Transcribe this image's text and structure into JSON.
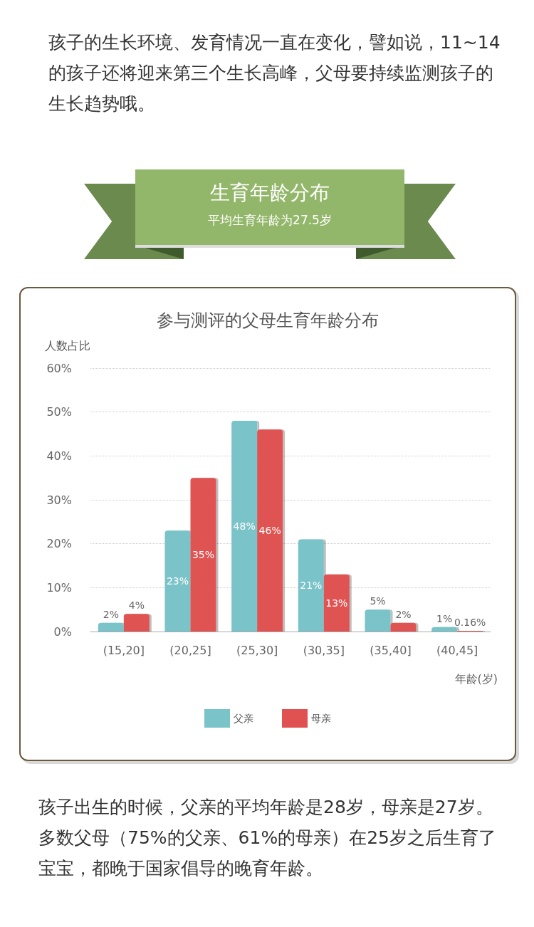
{
  "chart_data": {
    "type": "bar",
    "title": "参与测评的父母生育年龄分布",
    "ylabel": "人数占比",
    "xlabel": "年龄(岁)",
    "annotations": [
      "孩子的生长环境、发育情况一直在变化，譬如说，11~14的孩子还将迎来第三个生长高峰，父母要持续监测孩子的生长趋势哦。",
      "生育年龄分布",
      "平均生育年龄为27.5岁",
      "孩子出生的时候，父亲的平均年龄是28岁，母亲是27岁。多数父母（75%的父亲、61%的母亲）在25岁之后生育了宝宝，都晚于国家倡导的晚育年龄。"
    ],
    "categories": [
      "(15,20]",
      "(20,25]",
      "(25,30]",
      "(30,35]",
      "(35,40]",
      "(40,45]"
    ],
    "series": [
      {
        "name": "父亲",
        "color": "#7ac3c9",
        "values": [
          2,
          23,
          48,
          21,
          5,
          1
        ],
        "value_labels": [
          "2%",
          "23%",
          "48%",
          "21%",
          "5%",
          "1%"
        ]
      },
      {
        "name": "母亲",
        "color": "#e05252",
        "values": [
          4,
          35,
          46,
          13,
          2,
          0.16
        ],
        "value_labels": [
          "4%",
          "35%",
          "46%",
          "13%",
          "2%",
          "0.16%"
        ]
      }
    ],
    "ylim": [
      0,
      60
    ],
    "yticks": [
      {
        "value": 0,
        "label": "0%"
      },
      {
        "value": 10,
        "label": "10%"
      },
      {
        "value": 20,
        "label": "20%"
      },
      {
        "value": 30,
        "label": "30%"
      },
      {
        "value": 40,
        "label": "40%"
      },
      {
        "value": 50,
        "label": "50%"
      },
      {
        "value": 60,
        "label": "60%"
      }
    ],
    "grid": "y",
    "legend": "bottom"
  }
}
